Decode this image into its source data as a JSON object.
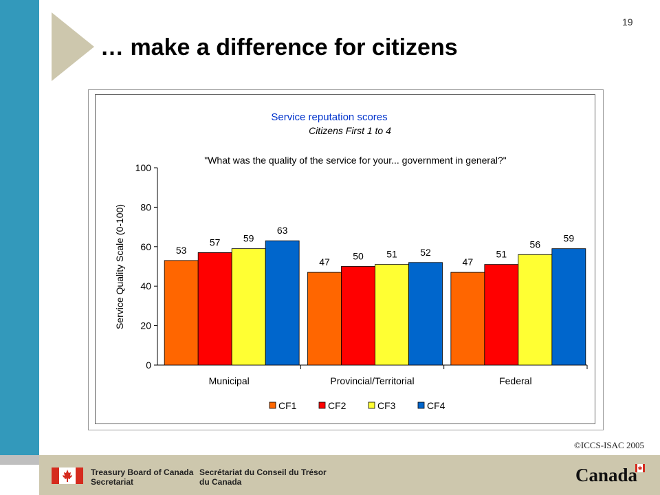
{
  "page": {
    "number": "19",
    "title": "… make a difference for citizens",
    "copyright": "©ICCS-ISAC 2005"
  },
  "footer": {
    "en_line1": "Treasury Board of Canada",
    "en_line2": "Secretariat",
    "fr_line1": "Secrétariat du Conseil du Trésor",
    "fr_line2": "du Canada",
    "wordmark": "Canada",
    "flag_icon": "canada-flag-icon"
  },
  "colors": {
    "accent_bar": "#3399bb",
    "footer_bg": "#cdc7ad",
    "chevron": "#cdc7ad",
    "title_blue": "#0033cc"
  },
  "chart_data": {
    "type": "bar",
    "title": "Service reputation scores",
    "subtitle": "Citizens First 1 to 4",
    "annotation": "\"What was the quality of the service for your... government in general?\"",
    "xlabel": "",
    "ylabel": "Service Quality Scale (0-100)",
    "ylim": [
      0,
      100
    ],
    "yticks": [
      "0",
      "20",
      "40",
      "60",
      "80",
      "100"
    ],
    "categories": [
      "Municipal",
      "Provincial/Territorial",
      "Federal"
    ],
    "series": [
      {
        "name": "CF1",
        "color": "#ff6600",
        "values": [
          53,
          47,
          47
        ]
      },
      {
        "name": "CF2",
        "color": "#ff0000",
        "values": [
          57,
          50,
          51
        ]
      },
      {
        "name": "CF3",
        "color": "#ffff33",
        "values": [
          59,
          51,
          56
        ]
      },
      {
        "name": "CF4",
        "color": "#0066cc",
        "values": [
          63,
          52,
          59
        ]
      }
    ],
    "grid": false,
    "legend_position": "bottom"
  }
}
